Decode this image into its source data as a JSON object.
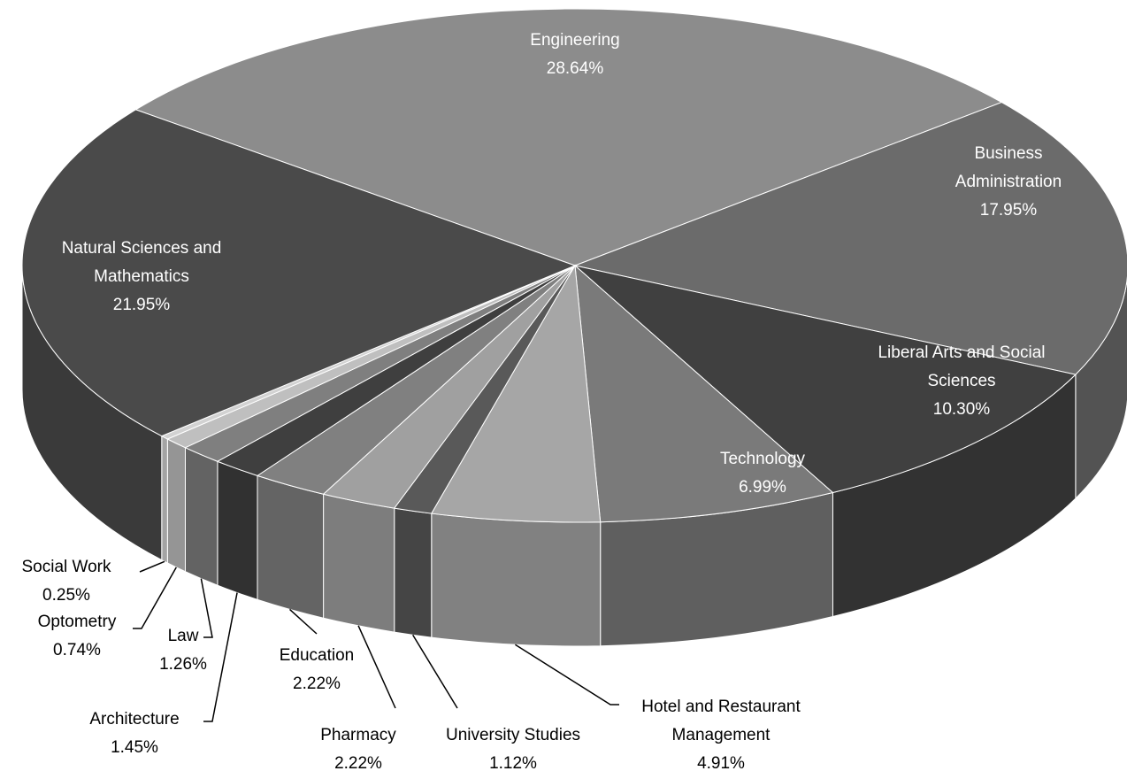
{
  "chart_data": {
    "type": "pie3d",
    "categories": [
      "Engineering",
      "Business Administration",
      "Liberal Arts and Social Sciences",
      "Technology",
      "Hotel and Restaurant Management",
      "University Studies",
      "Pharmacy",
      "Education",
      "Architecture",
      "Law",
      "Optometry",
      "Social Work",
      "Natural Sciences and Mathematics"
    ],
    "values": [
      28.64,
      17.95,
      10.3,
      6.99,
      4.91,
      1.12,
      2.22,
      2.22,
      1.45,
      1.26,
      0.74,
      0.25,
      21.95
    ],
    "value_labels": [
      "28.64%",
      "17.95%",
      "10.30%",
      "6.99%",
      "4.91%",
      "1.12%",
      "2.22%",
      "2.22%",
      "1.45%",
      "1.26%",
      "0.74%",
      "0.25%",
      "21.95%"
    ],
    "colors": [
      "#8c8c8c",
      "#6b6b6b",
      "#404040",
      "#7a7a7a",
      "#a6a6a6",
      "#595959",
      "#a0a0a0",
      "#808080",
      "#3f3f3f",
      "#7f7f7f",
      "#bfbfbf",
      "#d2d2d2",
      "#4a4a4a"
    ]
  }
}
